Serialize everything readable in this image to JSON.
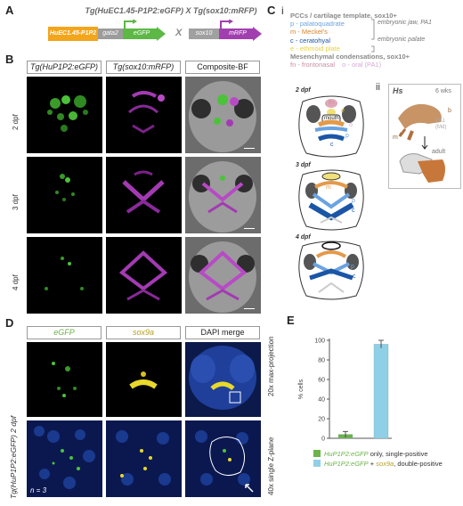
{
  "panels": {
    "a": "A",
    "b": "B",
    "c": "C",
    "d": "D",
    "e": "E"
  },
  "panel_a": {
    "title": "Tg(HuEC1.45-P1P2:eGFP) X Tg(sox10:mRFP)",
    "construct1": {
      "enhancer": "HuEC1.45-P1P2",
      "promoter": "gata2",
      "reporter": "eGFP"
    },
    "cross": "X",
    "construct2": {
      "promoter": "sox10",
      "reporter": "mRFP"
    }
  },
  "panel_b": {
    "col_gfp": "Tg(HuP1P2:eGFP)",
    "col_rfp": "Tg(sox10:mRFP)",
    "col_composite": "Composite-BF",
    "rows": [
      "2 dpf",
      "3 dpf",
      "4 dpf"
    ]
  },
  "panel_c": {
    "sub_i": "i",
    "sub_ii": "ii",
    "heading1": "PCCs / cartilage template, sox10+",
    "p": "p - palatoquadrate",
    "m": "m - Meckel's",
    "c": "c - ceratohyal",
    "e": "e - ethmoid plate",
    "bracket1": "embryonic jaw, PA1",
    "bracket2": "embryonic palate",
    "heading2": "Mesenchymal condensations, sox10+",
    "fn": "fn - frontonasal",
    "o": "o - oral (PA1)",
    "stages": [
      "2 dpf",
      "3 dpf",
      "4 dpf"
    ],
    "mouth": "mouth",
    "schematic_letters": {
      "fn": "fn",
      "e": "e",
      "o": "o",
      "m": "m",
      "p": "p",
      "c": "c"
    },
    "hs": {
      "species": "Hs",
      "age": "6 wks",
      "b": "b",
      "m": "m",
      "pa1": "PA1",
      "md": "(Md)",
      "adult": "adult"
    }
  },
  "panel_d": {
    "col_egfp": "eGFP",
    "col_sox9a": "sox9a",
    "col_dapi": "DAPI merge",
    "row_label": "Tg(HuP1P2:eGFP) 2 dpf",
    "right_top": "20x max-projection",
    "right_bottom": "40x single Z-plane",
    "n": "n = 3"
  },
  "chart_data": {
    "type": "bar",
    "categories": [
      "HuP1P2:eGFP only, single-positive",
      "HuP1P2:eGFP + sox9a, double-positive"
    ],
    "values": [
      4,
      96
    ],
    "errors": [
      3,
      4
    ],
    "colors": [
      "#6bb34a",
      "#8fd0e6"
    ],
    "ylabel": "% cells",
    "ylim": [
      0,
      100
    ],
    "yticks": [
      0,
      20,
      40,
      60,
      80,
      100
    ],
    "legend": [
      {
        "prefix": "HuP1P2:eGFP",
        "suffix": " only, single-positive"
      },
      {
        "prefix": "HuP1P2:eGFP",
        "mid": " + ",
        "gene": "sox9a",
        "suffix": ", double-positive"
      }
    ]
  }
}
